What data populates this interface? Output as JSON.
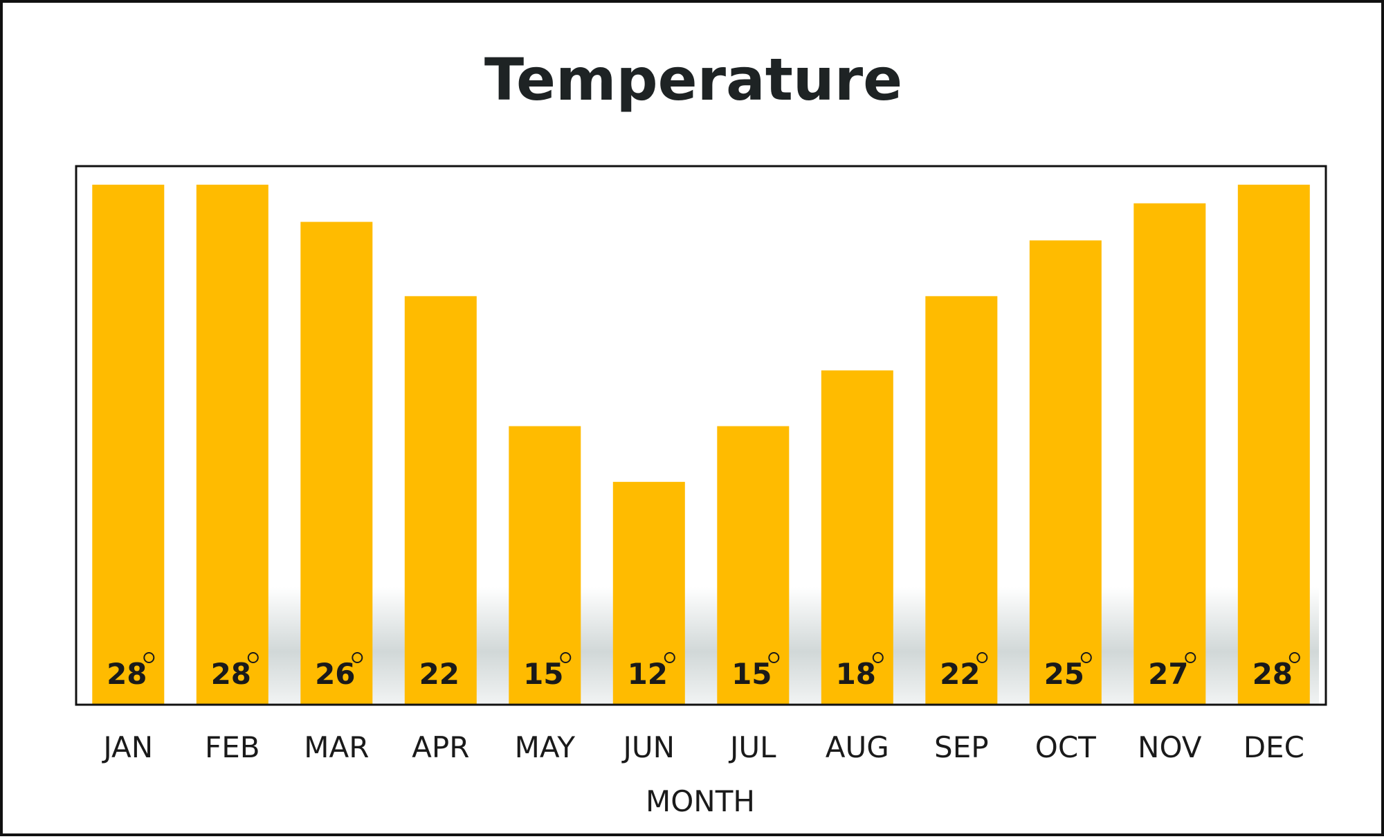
{
  "chart_data": {
    "type": "bar",
    "title": "Temperature",
    "xlabel": "MONTH",
    "ylabel": "",
    "categories": [
      "JAN",
      "FEB",
      "MAR",
      "APR",
      "MAY",
      "JUN",
      "JUL",
      "AUG",
      "SEP",
      "OCT",
      "NOV",
      "DEC"
    ],
    "values": [
      28,
      28,
      26,
      22,
      15,
      12,
      15,
      18,
      22,
      25,
      27,
      28
    ],
    "data_labels": [
      "28",
      "28",
      "26",
      "22",
      "15",
      "12",
      "15",
      "18",
      "22",
      "25",
      "27",
      "28"
    ],
    "degree_symbol": [
      true,
      true,
      true,
      false,
      true,
      true,
      true,
      true,
      true,
      true,
      true,
      true
    ],
    "ylim": [
      0,
      29
    ],
    "grid": false,
    "legend": "none",
    "colors": {
      "bar": "#ffbb00",
      "plot_border": "#111111",
      "shadow": "#c9d1d1",
      "text": "#1a1a1a"
    }
  }
}
